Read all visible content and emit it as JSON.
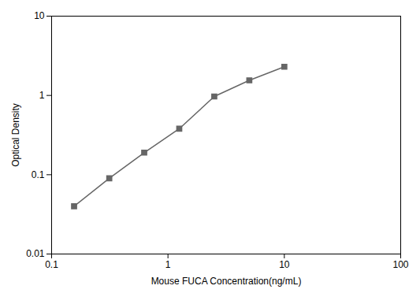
{
  "chart_data": {
    "type": "line",
    "x": [
      0.156,
      0.313,
      0.625,
      1.25,
      2.5,
      5.0,
      10.0
    ],
    "values": [
      0.04,
      0.09,
      0.19,
      0.38,
      0.97,
      1.55,
      2.3
    ],
    "xlabel": "Mouse FUCA Concentration(ng/mL)",
    "ylabel": "Optical Density",
    "log": true,
    "xlim": [
      0.1,
      100
    ],
    "ylim": [
      0.01,
      10
    ],
    "xticks": [
      0.1,
      1,
      10,
      100
    ],
    "yticks": [
      0.01,
      0.1,
      1,
      10
    ],
    "grid": false,
    "color": "#666666",
    "marker": "square"
  }
}
